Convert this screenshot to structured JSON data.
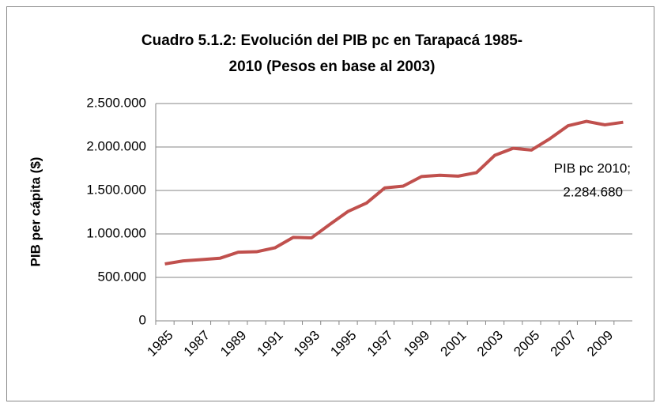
{
  "chart_data": {
    "type": "line",
    "title": [
      "Cuadro 5.1.2: Evolución del PIB pc en Tarapacá 1985-",
      "2010 (Pesos en base al 2003)"
    ],
    "y_label": "PIB per cápita ($)",
    "categories": [
      "1985",
      null,
      "1987",
      null,
      "1989",
      null,
      "1991",
      null,
      "1993",
      null,
      "1995",
      null,
      "1997",
      null,
      "1999",
      null,
      "2001",
      null,
      "2003",
      null,
      "2005",
      null,
      "2007",
      null,
      "2009",
      null
    ],
    "series": [
      {
        "name": "PIB pc",
        "color": "#c0504d",
        "values": [
          655000,
          690000,
          705000,
          720000,
          790000,
          795000,
          840000,
          960000,
          955000,
          1110000,
          1260000,
          1355000,
          1530000,
          1550000,
          1660000,
          1675000,
          1665000,
          1705000,
          1905000,
          1985000,
          1965000,
          2095000,
          2245000,
          2295000,
          2255000,
          2284680
        ],
        "value_labels": [
          null,
          null,
          null,
          null,
          null,
          null,
          null,
          null,
          null,
          null,
          null,
          null,
          null,
          null,
          null,
          null,
          null,
          null,
          null,
          null,
          null,
          null,
          null,
          null,
          null,
          "2.284.680"
        ]
      }
    ],
    "annotation": "PIB pc 2010;",
    "ylim": [
      0,
      2500000
    ],
    "yticks": [
      0,
      {
        "value": 500000,
        "label": "500.000"
      },
      {
        "value": 1000000,
        "label": "1.000.000"
      },
      {
        "value": 1500000,
        "label": "1.500.000"
      },
      {
        "value": 2000000,
        "label": "2.000.000"
      },
      {
        "value": 2500000,
        "label": "2.500.000"
      }
    ],
    "grid": true
  }
}
